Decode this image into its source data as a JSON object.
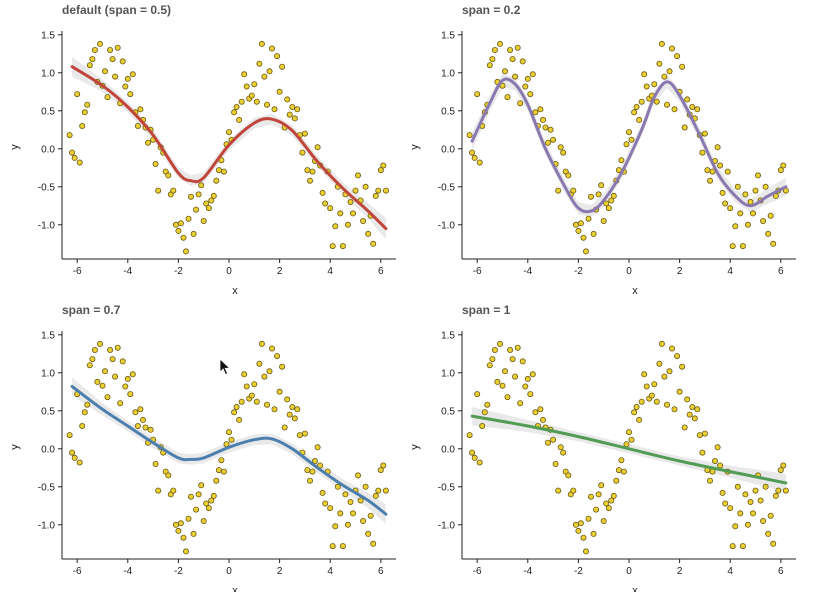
{
  "chart_data": [
    {
      "type": "scatter",
      "title": "default (span = 0.5)",
      "xlabel": "x",
      "ylabel": "y",
      "xlim": [
        -6.6,
        6.6
      ],
      "ylim": [
        -1.45,
        1.55
      ],
      "xticks": [
        -6,
        -4,
        -2,
        0,
        2,
        4,
        6
      ],
      "yticks": [
        -1.0,
        -0.5,
        0.0,
        0.5,
        1.0,
        1.5
      ],
      "smooth_color": "#c0453b",
      "smooth_x": [
        -6.2,
        -5.0,
        -4.0,
        -3.0,
        -2.0,
        -1.5,
        -1.0,
        0.0,
        1.0,
        1.7,
        2.5,
        3.5,
        4.5,
        5.5,
        6.2
      ],
      "smooth_y": [
        1.08,
        0.83,
        0.55,
        0.18,
        -0.32,
        -0.42,
        -0.38,
        0.05,
        0.34,
        0.39,
        0.24,
        -0.17,
        -0.52,
        -0.82,
        -1.05
      ],
      "band_width": [
        0.13,
        0.08,
        0.07,
        0.07,
        0.07,
        0.07,
        0.07,
        0.07,
        0.07,
        0.07,
        0.07,
        0.07,
        0.08,
        0.1,
        0.14
      ]
    },
    {
      "type": "scatter",
      "title": "span = 0.2",
      "xlabel": "x",
      "ylabel": "y",
      "xlim": [
        -6.6,
        6.6
      ],
      "ylim": [
        -1.45,
        1.55
      ],
      "xticks": [
        -6,
        -4,
        -2,
        0,
        2,
        4,
        6
      ],
      "yticks": [
        -1.0,
        -0.5,
        0.0,
        0.5,
        1.0,
        1.5
      ],
      "smooth_color": "#8a78b0",
      "smooth_x": [
        -6.2,
        -5.5,
        -5.0,
        -4.5,
        -4.0,
        -3.3,
        -2.5,
        -2.0,
        -1.5,
        -1.0,
        -0.3,
        0.5,
        1.0,
        1.5,
        2.0,
        2.8,
        3.5,
        4.2,
        4.8,
        5.5,
        6.2
      ],
      "smooth_y": [
        0.1,
        0.6,
        0.9,
        0.85,
        0.58,
        0.0,
        -0.52,
        -0.78,
        -0.82,
        -0.68,
        -0.32,
        0.25,
        0.68,
        0.88,
        0.7,
        0.18,
        -0.32,
        -0.62,
        -0.75,
        -0.62,
        -0.5
      ],
      "band_width": [
        0.12,
        0.1,
        0.09,
        0.08,
        0.08,
        0.08,
        0.08,
        0.08,
        0.08,
        0.08,
        0.08,
        0.08,
        0.08,
        0.08,
        0.08,
        0.08,
        0.08,
        0.08,
        0.09,
        0.1,
        0.12
      ]
    },
    {
      "type": "scatter",
      "title": "span = 0.7",
      "xlabel": "x",
      "ylabel": "y",
      "xlim": [
        -6.6,
        6.6
      ],
      "ylim": [
        -1.45,
        1.55
      ],
      "xticks": [
        -6,
        -4,
        -2,
        0,
        2,
        4,
        6
      ],
      "yticks": [
        -1.0,
        -0.5,
        0.0,
        0.5,
        1.0,
        1.5
      ],
      "smooth_color": "#4c7fae",
      "smooth_x": [
        -6.2,
        -5.0,
        -4.0,
        -3.0,
        -2.0,
        -1.5,
        -1.0,
        0.0,
        1.0,
        1.7,
        2.5,
        3.5,
        4.5,
        5.5,
        6.2
      ],
      "smooth_y": [
        0.82,
        0.52,
        0.3,
        0.08,
        -0.12,
        -0.14,
        -0.12,
        0.02,
        0.12,
        0.13,
        0.0,
        -0.25,
        -0.48,
        -0.68,
        -0.86
      ],
      "band_width": [
        0.12,
        0.08,
        0.07,
        0.07,
        0.07,
        0.07,
        0.07,
        0.07,
        0.07,
        0.07,
        0.07,
        0.07,
        0.08,
        0.1,
        0.13
      ]
    },
    {
      "type": "scatter",
      "title": "span = 1",
      "xlabel": "x",
      "ylabel": "y",
      "xlim": [
        -6.6,
        6.6
      ],
      "ylim": [
        -1.45,
        1.55
      ],
      "xticks": [
        -6,
        -4,
        -2,
        0,
        2,
        4,
        6
      ],
      "yticks": [
        -1.0,
        -0.5,
        0.0,
        0.5,
        1.0,
        1.5
      ],
      "smooth_color": "#529b55",
      "smooth_x": [
        -6.2,
        -4.0,
        -2.0,
        0.0,
        2.0,
        4.0,
        6.2
      ],
      "smooth_y": [
        0.43,
        0.3,
        0.16,
        0.0,
        -0.16,
        -0.3,
        -0.45
      ],
      "band_width": [
        0.12,
        0.08,
        0.06,
        0.06,
        0.06,
        0.08,
        0.12
      ]
    }
  ],
  "scatter_points": {
    "x": [
      -6.3,
      -6.2,
      -6.1,
      -6.0,
      -5.9,
      -5.8,
      -5.7,
      -5.6,
      -5.5,
      -5.4,
      -5.3,
      -5.2,
      -5.1,
      -5.0,
      -4.9,
      -4.8,
      -4.7,
      -4.6,
      -4.5,
      -4.4,
      -4.3,
      -4.2,
      -4.1,
      -4.0,
      -3.9,
      -3.8,
      -3.7,
      -3.6,
      -3.5,
      -3.4,
      -3.3,
      -3.2,
      -3.1,
      -3.0,
      -2.9,
      -2.8,
      -2.7,
      -2.6,
      -2.5,
      -2.4,
      -2.3,
      -2.2,
      -2.1,
      -2.0,
      -1.9,
      -1.8,
      -1.7,
      -1.6,
      -1.5,
      -1.4,
      -1.3,
      -1.2,
      -1.1,
      -1.0,
      -0.9,
      -0.8,
      -0.7,
      -0.6,
      -0.5,
      -0.4,
      -0.3,
      -0.2,
      -0.1,
      0.0,
      0.1,
      0.2,
      0.3,
      0.4,
      0.5,
      0.6,
      0.7,
      0.8,
      0.9,
      1.0,
      1.1,
      1.2,
      1.3,
      1.4,
      1.5,
      1.6,
      1.7,
      1.8,
      1.9,
      2.0,
      2.1,
      2.2,
      2.3,
      2.4,
      2.5,
      2.6,
      2.7,
      2.8,
      2.9,
      3.0,
      3.1,
      3.2,
      3.3,
      3.4,
      3.5,
      3.6,
      3.7,
      3.8,
      3.9,
      4.0,
      4.1,
      4.2,
      4.3,
      4.4,
      4.5,
      4.6,
      4.7,
      4.8,
      4.9,
      5.0,
      5.1,
      5.2,
      5.3,
      5.4,
      5.5,
      5.6,
      5.7,
      5.8,
      5.9,
      6.0,
      6.1,
      6.2
    ],
    "y": [
      0.18,
      -0.05,
      -0.12,
      0.72,
      -0.18,
      0.3,
      0.48,
      0.58,
      1.1,
      1.18,
      1.3,
      0.88,
      1.38,
      0.83,
      1.02,
      0.68,
      1.3,
      1.18,
      0.95,
      1.33,
      0.6,
      1.15,
      0.82,
      0.92,
      0.72,
      0.98,
      0.48,
      0.3,
      0.52,
      0.38,
      0.28,
      0.08,
      0.25,
      0.12,
      -0.2,
      -0.55,
      0.02,
      -0.05,
      -0.3,
      -0.35,
      -0.6,
      -0.55,
      -1.0,
      -1.08,
      -0.98,
      -1.17,
      -1.35,
      -0.92,
      -0.63,
      -1.12,
      -0.8,
      -0.6,
      -0.48,
      -0.95,
      -0.72,
      -0.78,
      -0.68,
      -0.62,
      -0.42,
      -0.28,
      -0.15,
      -0.3,
      0.06,
      0.22,
      0.12,
      0.48,
      0.55,
      0.38,
      0.62,
      0.98,
      0.82,
      0.66,
      0.7,
      0.85,
      0.62,
      1.12,
      1.38,
      0.95,
      0.58,
      1.02,
      1.32,
      0.52,
      1.22,
      0.75,
      1.08,
      0.28,
      0.65,
      0.45,
      0.55,
      0.4,
      0.52,
      0.18,
      -0.05,
      0.2,
      -0.28,
      -0.42,
      -0.3,
      -0.16,
      0.02,
      -0.22,
      -0.58,
      -0.72,
      -0.3,
      -0.78,
      -1.28,
      -1.02,
      -0.5,
      -0.85,
      -1.28,
      -0.6,
      -1.0,
      -0.7,
      -0.85,
      -0.55,
      -0.35,
      -0.68,
      -0.95,
      -0.5,
      -1.12,
      -0.88,
      -1.25,
      -0.62,
      -0.55,
      -0.28,
      -0.22,
      -0.55
    ]
  }
}
